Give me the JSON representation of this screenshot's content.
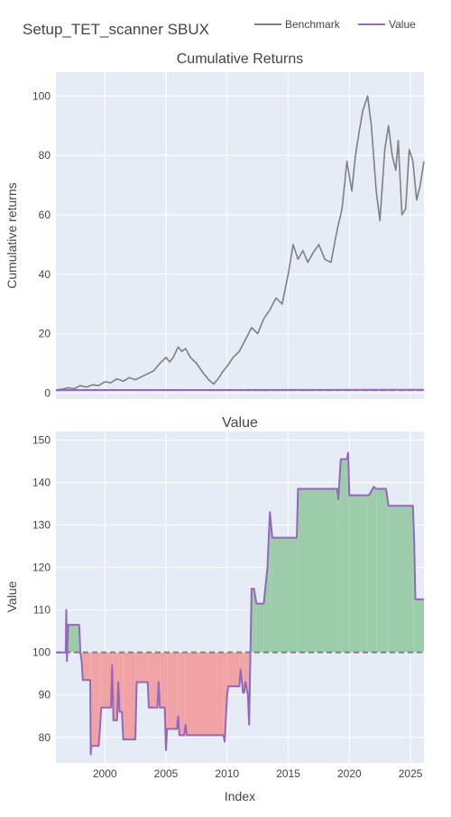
{
  "chart_data": [
    {
      "id": "cumulative",
      "type": "line",
      "title": "Cumulative Returns",
      "ylabel": "Cumulative returns",
      "xlabel": "",
      "xlim": [
        1996.0,
        2026.1
      ],
      "ylim": [
        -2,
        108
      ],
      "yticks": [
        0,
        20,
        40,
        60,
        80,
        100
      ],
      "xticks": [
        2000,
        2005,
        2010,
        2015,
        2020,
        2025
      ],
      "grid": true,
      "series": [
        {
          "name": "Benchmark",
          "color": "#808080",
          "x": [
            1996.0,
            1996.5,
            1997.0,
            1997.5,
            1998.0,
            1998.5,
            1999.0,
            1999.5,
            2000.0,
            2000.5,
            2001.0,
            2001.5,
            2002.0,
            2002.5,
            2003.0,
            2003.5,
            2004.0,
            2004.5,
            2005.0,
            2005.3,
            2005.6,
            2006.0,
            2006.3,
            2006.6,
            2007.0,
            2007.5,
            2008.0,
            2008.5,
            2008.9,
            2009.3,
            2009.6,
            2010.0,
            2010.5,
            2011.0,
            2011.5,
            2012.0,
            2012.5,
            2013.0,
            2013.5,
            2014.0,
            2014.5,
            2015.0,
            2015.4,
            2015.8,
            2016.2,
            2016.6,
            2017.0,
            2017.5,
            2018.0,
            2018.5,
            2019.0,
            2019.4,
            2019.8,
            2020.2,
            2020.5,
            2020.8,
            2021.1,
            2021.5,
            2021.8,
            2022.2,
            2022.5,
            2022.9,
            2023.2,
            2023.5,
            2023.8,
            2024.0,
            2024.3,
            2024.6,
            2024.9,
            2025.2,
            2025.5,
            2025.8,
            2026.1
          ],
          "y": [
            1,
            1.3,
            1.8,
            1.5,
            2.5,
            2.0,
            2.8,
            2.5,
            3.8,
            3.5,
            4.8,
            4.0,
            5.2,
            4.5,
            5.5,
            6.5,
            7.5,
            10.0,
            12.0,
            10.5,
            12.0,
            15.5,
            14.0,
            15.0,
            12.0,
            10.0,
            7.0,
            4.5,
            3.0,
            5.0,
            7.0,
            9.0,
            12.0,
            14.0,
            18.0,
            22.0,
            20.0,
            25.0,
            28.0,
            32.0,
            30.0,
            40.0,
            50.0,
            45.0,
            48.0,
            44.0,
            47.0,
            50.0,
            45.0,
            44.0,
            55.0,
            62.0,
            78.0,
            68.0,
            80.0,
            88.0,
            95.0,
            100.0,
            90.0,
            68.0,
            58.0,
            82.0,
            90.0,
            80.0,
            75.0,
            85.0,
            60.0,
            62.0,
            82.0,
            78.0,
            65.0,
            70.0,
            78.0
          ]
        },
        {
          "name": "Value",
          "color": "#9467bd",
          "x": [
            1996.0,
            2026.1
          ],
          "y": [
            1.0,
            1.1
          ]
        }
      ],
      "reference_line": {
        "y": 1.0,
        "dash": true,
        "color": "#808080"
      }
    },
    {
      "id": "value",
      "type": "area",
      "title": "Value",
      "ylabel": "Value",
      "xlabel": "Index",
      "xlim": [
        1996.0,
        2026.1
      ],
      "ylim": [
        74,
        152
      ],
      "yticks": [
        80,
        90,
        100,
        110,
        120,
        130,
        140,
        150
      ],
      "xticks": [
        2000,
        2005,
        2010,
        2015,
        2020,
        2025
      ],
      "baseline": 100,
      "grid": true,
      "colors": {
        "line": "#9467bd",
        "above": "#9cccaa",
        "below": "#f0a2a5",
        "baseline": "#808080"
      },
      "series": [
        {
          "name": "Value",
          "x": [
            1996.0,
            1996.8,
            1996.85,
            1996.9,
            1997.0,
            1997.9,
            1998.0,
            1998.1,
            1998.2,
            1998.8,
            1998.85,
            1998.9,
            1999.5,
            1999.6,
            1999.7,
            2000.5,
            2000.6,
            2000.7,
            2001.0,
            2001.1,
            2001.2,
            2001.4,
            2001.5,
            2001.6,
            2002.5,
            2002.6,
            2002.7,
            2003.5,
            2003.6,
            2003.7,
            2004.3,
            2004.4,
            2004.5,
            2004.9,
            2005.0,
            2005.1,
            2005.9,
            2006.0,
            2006.1,
            2006.5,
            2006.6,
            2006.7,
            2009.7,
            2009.8,
            2010.0,
            2010.1,
            2011.0,
            2011.1,
            2011.3,
            2011.4,
            2011.5,
            2011.7,
            2011.8,
            2012.0,
            2012.2,
            2012.4,
            2013.0,
            2013.3,
            2013.5,
            2013.7,
            2014.0,
            2015.7,
            2015.8,
            2019.0,
            2019.1,
            2019.3,
            2019.8,
            2019.9,
            2020.0,
            2021.5,
            2021.6,
            2022.0,
            2022.2,
            2023.0,
            2023.2,
            2025.2,
            2025.3,
            2025.4,
            2026.1
          ],
          "y": [
            100,
            100,
            110,
            98,
            106.5,
            106.5,
            100,
            98,
            93.5,
            93.5,
            76,
            78,
            78,
            82,
            87,
            87,
            97,
            84,
            84,
            93,
            86,
            86,
            79.5,
            79.5,
            79.5,
            93,
            93,
            93,
            87,
            87,
            87,
            93,
            87,
            87,
            77,
            82,
            82,
            85,
            80.5,
            80.5,
            83,
            80.5,
            80.5,
            79,
            90,
            92,
            92,
            96,
            90.5,
            90.5,
            93,
            90,
            83,
            115,
            115,
            111.5,
            111.5,
            120,
            133,
            127,
            127,
            127,
            138.5,
            138.5,
            136,
            145.5,
            145.5,
            147,
            137,
            137,
            137,
            139,
            138.5,
            138.5,
            134.5,
            134.5,
            126,
            112.5,
            112.5
          ]
        }
      ]
    }
  ],
  "header": {
    "title": "Setup_TET_scanner SBUX",
    "legend": [
      {
        "label": "Benchmark",
        "color": "#808080"
      },
      {
        "label": "Value",
        "color": "#9467bd"
      }
    ]
  }
}
